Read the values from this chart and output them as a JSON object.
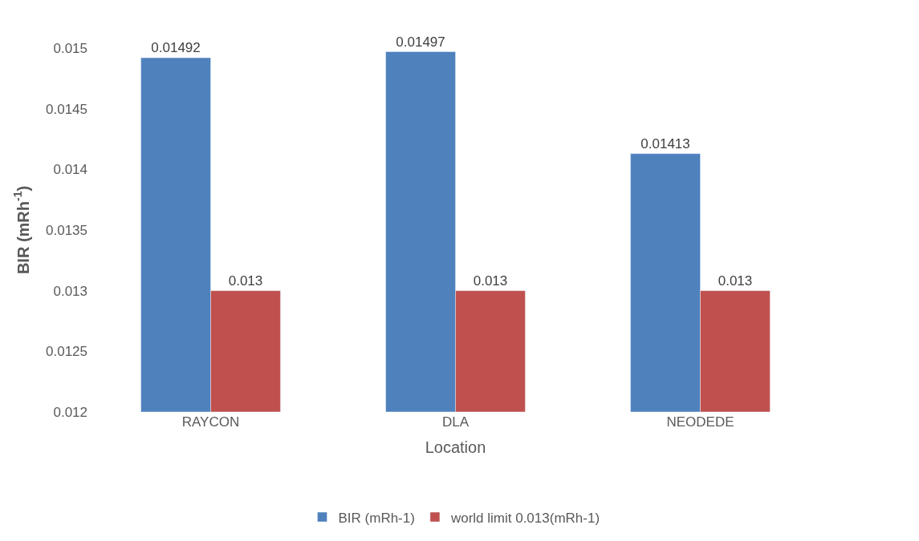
{
  "chart_data": {
    "type": "bar",
    "xlabel": "Location",
    "ylabel": "BIR (mRh$^{-1}$)",
    "categories": [
      "RAYCON",
      "DLA",
      "NEODEDE"
    ],
    "series": [
      {
        "name": "BIR (mRh-1)",
        "color": "#4f81bd",
        "values": [
          0.01492,
          0.01497,
          0.01413
        ]
      },
      {
        "name": "world limit 0.013(mRh-1)",
        "color": "#c0504d",
        "values": [
          0.013,
          0.013,
          0.013
        ]
      }
    ],
    "ylim": [
      0.012,
      0.015
    ],
    "yticks": [
      0.012,
      0.0125,
      0.013,
      0.0135,
      0.014,
      0.0145,
      0.015
    ],
    "data_labels": true,
    "legend": "bottom"
  }
}
